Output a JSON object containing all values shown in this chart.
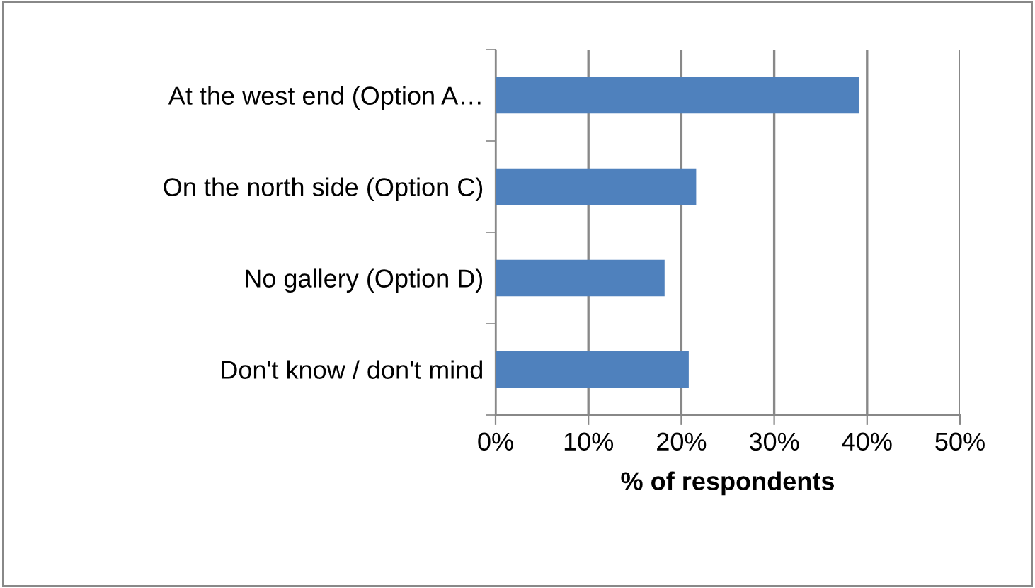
{
  "chart_data": {
    "type": "bar",
    "orientation": "horizontal",
    "xlabel": "% of respondents",
    "categories": [
      "At the west end (Option A…",
      "On the north side (Option C)",
      "No gallery (Option D)",
      "Don't know / don't mind"
    ],
    "values": [
      39.1,
      21.6,
      18.2,
      20.8
    ],
    "color": "#4f81bd",
    "xlim": [
      0,
      50
    ],
    "xticks": [
      {
        "value": 0,
        "label": "0%"
      },
      {
        "value": 10,
        "label": "10%"
      },
      {
        "value": 20,
        "label": "20%"
      },
      {
        "value": 30,
        "label": "30%"
      },
      {
        "value": 40,
        "label": "40%"
      },
      {
        "value": 50,
        "label": "50%"
      }
    ],
    "grid": "x",
    "legend": false
  }
}
